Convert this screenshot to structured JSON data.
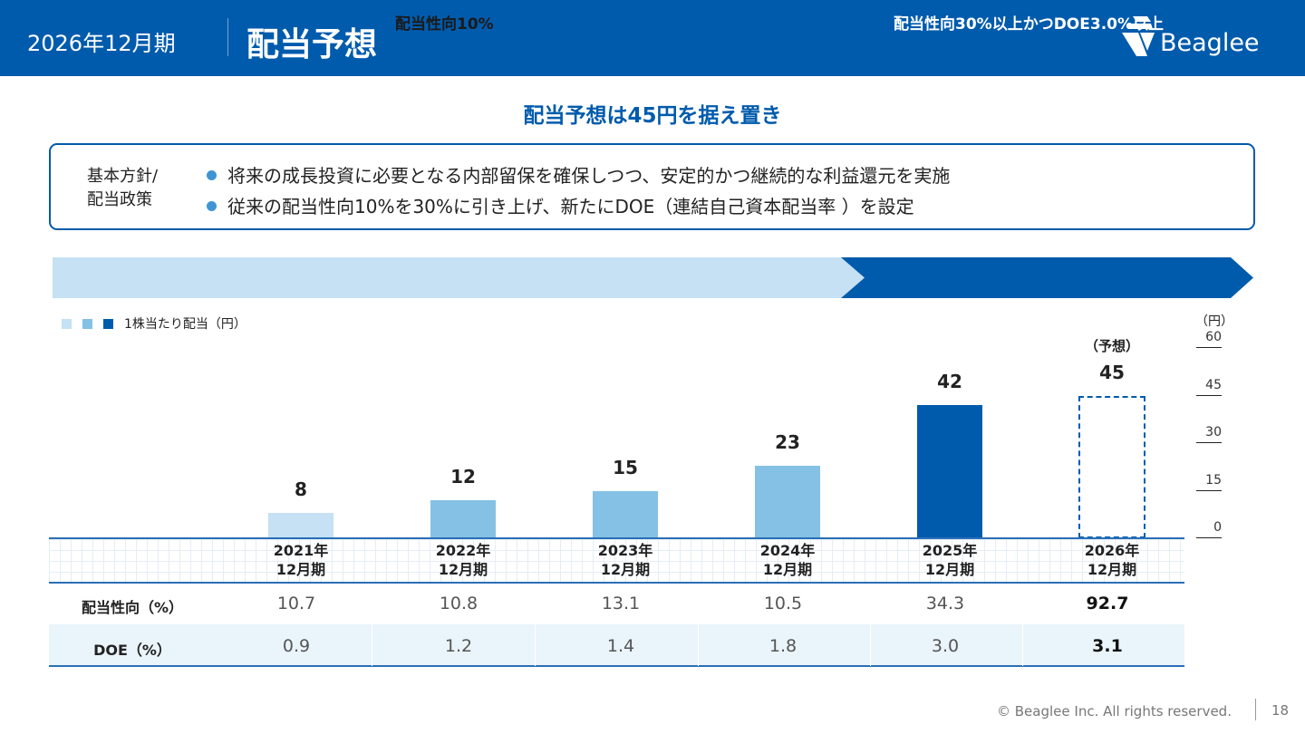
{
  "header": {
    "period": "2026年12月期",
    "title": "配当予想",
    "logo_text": "Beaglee"
  },
  "subtitle": "配当予想は45円を据え置き",
  "policy": {
    "label_line1": "基本方針/",
    "label_line2": "配当政策",
    "bullets": [
      "将来の成長投資に必要となる内部留保を確保しつつ、安定的かつ継続的な利益還元を実施",
      "従来の配当性向10%を30%に引き上げ、新たにDOE（連結自己資本配当率 ）を設定"
    ]
  },
  "bands": {
    "left": "配当性向10%",
    "right": "配当性向30%以上かつDOE3.0%以上"
  },
  "forecast_note": "（予想）",
  "colors": {
    "primary": "#005bac",
    "light": "#c5e1f3",
    "mid": "#85c1e4",
    "accent_dot": "#3f95d3"
  },
  "chart_data": {
    "type": "bar",
    "legend": "1株当たり配当（円）",
    "unit": "（円）",
    "categories": [
      [
        "2021年",
        "12月期"
      ],
      [
        "2022年",
        "12月期"
      ],
      [
        "2023年",
        "12月期"
      ],
      [
        "2024年",
        "12月期"
      ],
      [
        "2025年",
        "12月期"
      ],
      [
        "2026年",
        "12月期"
      ]
    ],
    "series": [
      {
        "name": "1株当たり配当（円）",
        "values": [
          8,
          12,
          15,
          23,
          42,
          45
        ]
      }
    ],
    "value_labels": [
      "8",
      "12",
      "15",
      "23",
      "42",
      "45"
    ],
    "bar_colors": [
      "#c5e1f3",
      "#85c1e4",
      "#85c1e4",
      "#85c1e4",
      "#005bac",
      "forecast-dashed"
    ],
    "forecast_index": 5,
    "yticks": [
      "0",
      "15",
      "30",
      "45",
      "60"
    ],
    "ylim": [
      0,
      60
    ]
  },
  "table": {
    "rows": [
      {
        "label": "配当性向（%）",
        "values": [
          "10.7",
          "10.8",
          "13.1",
          "10.5",
          "34.3",
          "92.7"
        ]
      },
      {
        "label": "DOE（%）",
        "values": [
          "0.9",
          "1.2",
          "1.4",
          "1.8",
          "3.0",
          "3.1"
        ]
      }
    ]
  },
  "footer": {
    "copyright": "© Beaglee Inc. All rights reserved.",
    "page": "18"
  }
}
